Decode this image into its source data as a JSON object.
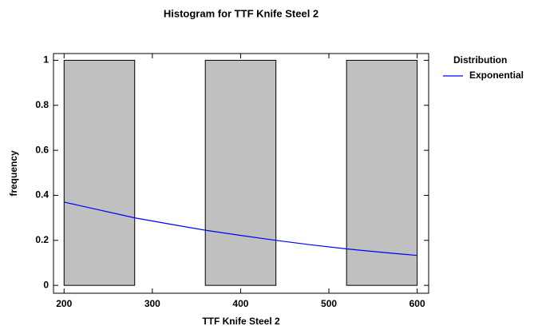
{
  "chart_data": {
    "type": "histogram",
    "title": "Histogram for TTF Knife Steel 2",
    "xlabel": "TTF Knife Steel 2",
    "ylabel": "frequency",
    "bins": [
      200,
      280,
      360,
      440,
      520,
      600
    ],
    "counts": [
      1,
      0,
      1,
      0,
      1
    ],
    "color": "#c0c0c0",
    "legend_title": "Distribution",
    "series": [
      {
        "name": "Exponential",
        "color": "#0000ff",
        "x": [
          200,
          240,
          280,
          320,
          360,
          400,
          440,
          480,
          520,
          560,
          600
        ],
        "values": [
          0.37,
          0.335,
          0.3,
          0.272,
          0.245,
          0.222,
          0.2,
          0.18,
          0.162,
          0.147,
          0.133
        ]
      }
    ],
    "xlim": [
      188,
      613
    ],
    "ylim": [
      -0.035,
      1.03
    ],
    "xticks": [
      200,
      300,
      400,
      500,
      600
    ],
    "yticks": [
      0,
      0.2,
      0.4,
      0.6,
      0.8,
      1
    ],
    "legend": "upper right"
  }
}
